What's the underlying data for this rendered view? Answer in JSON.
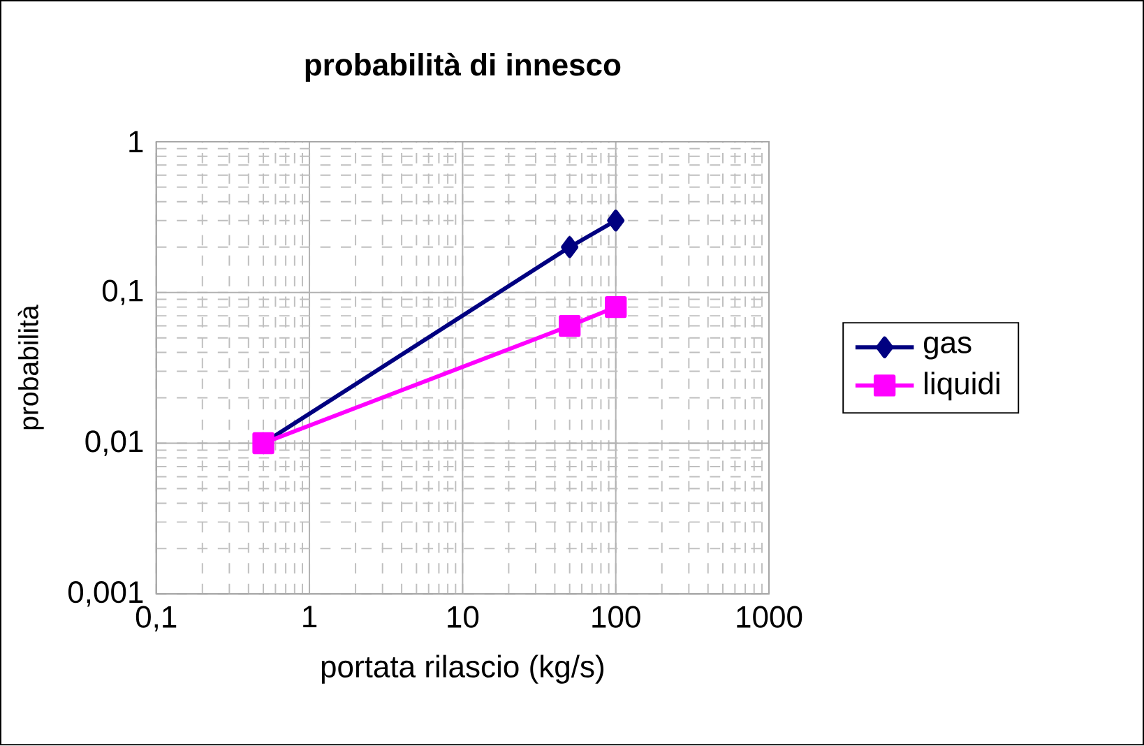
{
  "chart_data": {
    "type": "line",
    "title": "probabilità di innesco",
    "xlabel": "portata rilascio (kg/s)",
    "ylabel": "probabilità",
    "log": "xy",
    "grid": true,
    "legend": "right",
    "line_style": "solid",
    "xlim": [
      0.1,
      1000
    ],
    "ylim": [
      0.001,
      1
    ],
    "xticks": [
      {
        "value": 0.1,
        "label": "0,1"
      },
      1,
      10,
      100,
      1000
    ],
    "yticks": [
      {
        "value": 0.001,
        "label": "0,001"
      },
      {
        "value": 0.01,
        "label": "0,01"
      },
      {
        "value": 0.1,
        "label": "0,1"
      },
      1
    ],
    "series": [
      {
        "name": "gas",
        "color": "#000080",
        "marker": "diamond",
        "x": [
          0.5,
          50,
          100
        ],
        "values": [
          0.01,
          0.2,
          0.3
        ]
      },
      {
        "name": "liquidi",
        "color": "#ff00ff",
        "marker": "square",
        "x": [
          0.5,
          50,
          100
        ],
        "values": [
          0.01,
          0.06,
          0.08
        ]
      }
    ]
  }
}
